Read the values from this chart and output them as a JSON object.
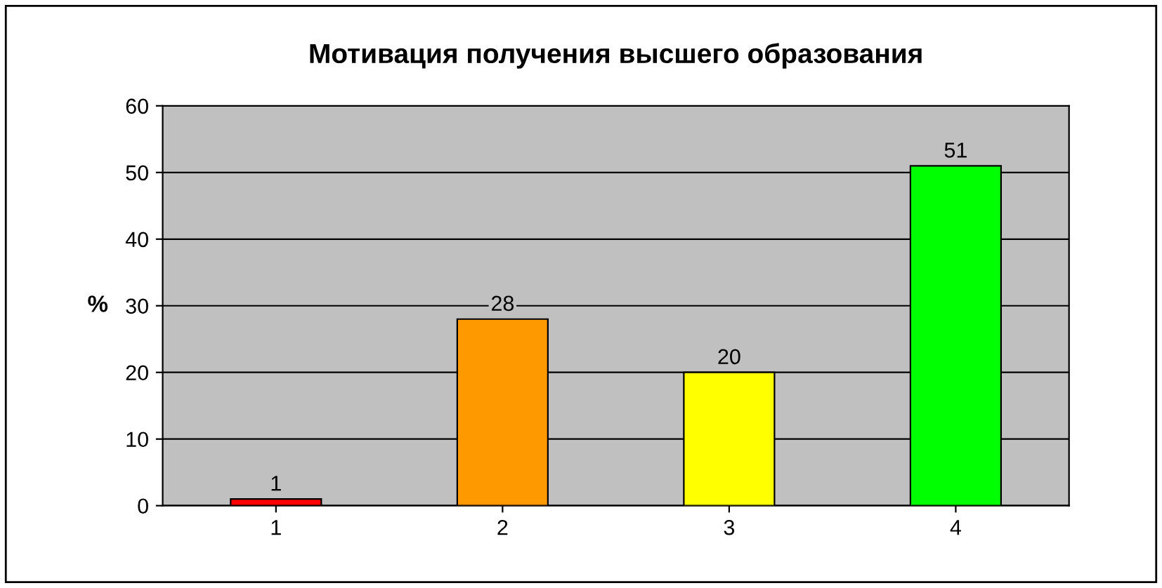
{
  "chart_data": {
    "type": "bar",
    "title": "Мотивация получения высшего образования",
    "ylabel": "%",
    "categories": [
      "1",
      "2",
      "3",
      "4"
    ],
    "values": [
      1,
      28,
      20,
      51
    ],
    "colors": [
      "#ff0000",
      "#ff9900",
      "#ffff00",
      "#00ff00"
    ],
    "ylim": [
      0,
      60
    ],
    "yticks": [
      0,
      10,
      20,
      30,
      40,
      50,
      60
    ],
    "grid": "y",
    "data_labels": true,
    "legend": false
  }
}
